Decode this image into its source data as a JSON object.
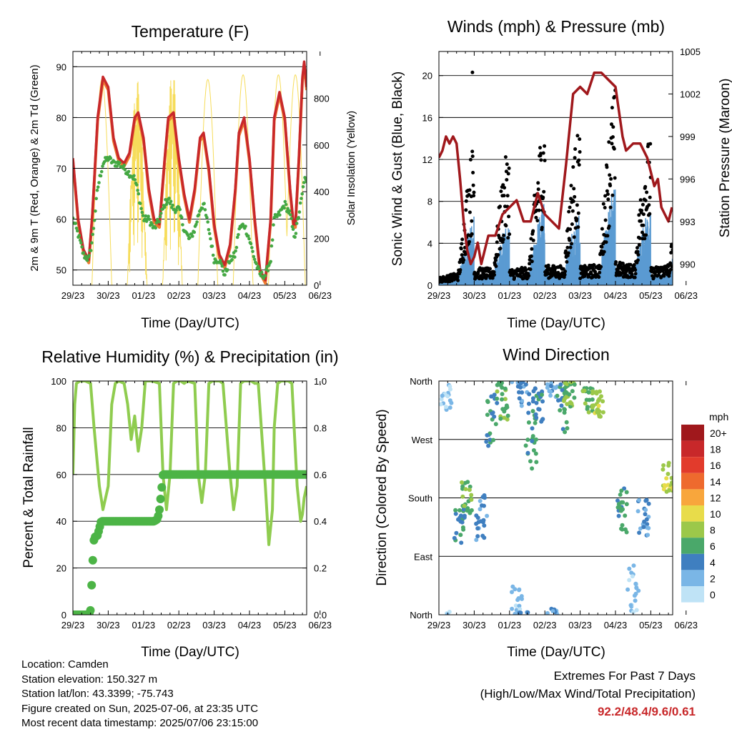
{
  "colors": {
    "temp_red": "#c8282a",
    "temp_orange": "#ee7a30",
    "dewpoint": "#44a843",
    "solar": "#f6dc5a",
    "wind": "#5b9bd2",
    "gust": "#000000",
    "pressure": "#a0181c",
    "rh": "#8fcc4f",
    "rain": "#4cb446"
  },
  "x_ticks": [
    "29/23",
    "30/23",
    "01/23",
    "02/23",
    "03/23",
    "04/23",
    "05/23",
    "06/23"
  ],
  "panels": {
    "temperature": {
      "title": "Temperature (F)",
      "xlabel": "Time (Day/UTC)",
      "ylabel_left": "2m & 9m T (Red, Orange) & 2m Td (Green)",
      "ylabel_right": "Solar Insolation (Yellow)"
    },
    "winds": {
      "title": "Winds (mph) & Pressure (mb)",
      "xlabel": "Time (Day/UTC)",
      "ylabel_left": "Sonic Wind & Gust (Blue, Black)",
      "ylabel_right": "Station Pressure (Maroon)"
    },
    "humidity": {
      "title": "Relative Humidity (%) & Precipitation (in)",
      "xlabel": "Time (Day/UTC)",
      "ylabel_left": "Percent & Total Rainfall"
    },
    "direction": {
      "title": "Wind Direction",
      "xlabel": "Time (Day/UTC)",
      "ylabel_left": "Direction (Colored By Speed)",
      "legend_title": "mph"
    }
  },
  "info": {
    "location": "Location: Camden",
    "elevation": "Station elevation: 150.327 m",
    "latlon": "Station lat/lon: 43.3399; -75.743",
    "created": "Figure created on Sun, 2025-07-06, at 23:35 UTC",
    "latest": "Most recent data timestamp: 2025/07/06 23:15:00"
  },
  "extremes": {
    "title": "Extremes For Past 7 Days",
    "subtitle": "(High/Low/Max Wind/Total Precipitation)",
    "values": "92.2/48.4/9.6/0.61"
  },
  "chart_data": [
    {
      "type": "line",
      "title": "Temperature (F)",
      "xlabel": "Time (Day/UTC)",
      "ylabel": "2m & 9m T (Red, Orange) & 2m Td (Green)",
      "y2label": "Solar Insolation (Yellow)",
      "x_ticks": [
        "29/23",
        "30/23",
        "01/23",
        "02/23",
        "03/23",
        "04/23",
        "05/23",
        "06/23"
      ],
      "ylim": [
        47,
        93
      ],
      "y2lim": [
        0,
        1000
      ],
      "yticks": [
        50,
        60,
        70,
        80,
        90
      ],
      "y2ticks": [
        0,
        200,
        400,
        600,
        800
      ],
      "x_days": [
        0,
        0.15,
        0.3,
        0.45,
        0.55,
        0.7,
        0.85,
        1,
        1.15,
        1.3,
        1.45,
        1.6,
        1.75,
        1.85,
        2,
        2.15,
        2.3,
        2.45,
        2.6,
        2.7,
        2.85,
        3,
        3.15,
        3.3,
        3.45,
        3.6,
        3.7,
        3.85,
        4,
        4.15,
        4.3,
        4.45,
        4.6,
        4.7,
        4.85,
        5,
        5.15,
        5.3,
        5.45,
        5.6,
        5.7,
        5.85,
        6,
        6.15,
        6.25,
        6.3,
        6.4,
        6.5,
        6.55,
        6.62
      ],
      "series": [
        {
          "name": "2m & 9m T",
          "values": [
            72,
            60,
            54,
            52,
            61,
            80,
            88,
            86,
            76,
            72,
            71,
            73,
            80,
            81,
            76,
            66,
            60,
            59,
            72,
            80,
            81,
            72,
            65,
            60,
            66,
            76,
            77,
            70,
            59,
            53,
            51,
            55,
            66,
            77,
            80,
            72,
            60,
            50,
            48,
            60,
            80,
            85,
            80,
            66,
            59,
            59,
            72,
            88,
            91,
            86
          ]
        },
        {
          "name": "2m Td",
          "values": [
            60,
            57,
            53,
            52,
            56,
            66,
            71,
            72,
            71,
            71,
            70,
            69,
            68,
            65,
            60,
            60,
            58,
            60,
            63,
            64,
            62,
            62,
            58,
            56,
            58,
            62,
            63,
            58,
            52,
            52,
            49,
            52,
            53,
            58,
            59,
            56,
            52,
            49,
            49,
            52,
            60,
            61,
            63,
            61,
            57,
            57,
            61,
            65,
            68,
            67
          ]
        },
        {
          "name": "Solar Insolation",
          "day_peaks": [
            880,
            880,
            920,
            880,
            900,
            900,
            900
          ],
          "peak_times": [
            0.82,
            1.82,
            2.82,
            3.82,
            4.82,
            5.82,
            6.3
          ]
        }
      ]
    },
    {
      "type": "scatter",
      "title": "Winds (mph) & Pressure (mb)",
      "xlabel": "Time (Day/UTC)",
      "ylabel": "Sonic Wind & Gust (Blue, Black)",
      "y2label": "Station Pressure (Maroon)",
      "x_ticks": [
        "29/23",
        "30/23",
        "01/23",
        "02/23",
        "03/23",
        "04/23",
        "05/23",
        "06/23"
      ],
      "ylim": [
        0,
        22.3
      ],
      "y2lim": [
        988.5,
        1005
      ],
      "yticks": [
        0,
        4,
        8,
        12,
        16,
        20
      ],
      "y2ticks": [
        990,
        993,
        996,
        999,
        1002,
        1005
      ],
      "wind_daily_peak": [
        3,
        7,
        6,
        8,
        7,
        9.5,
        7,
        8
      ],
      "gust_daily_peak": [
        6,
        14,
        13,
        16,
        15,
        19,
        14,
        18
      ],
      "pressure": {
        "x_days": [
          0,
          0.1,
          0.2,
          0.3,
          0.4,
          0.5,
          0.6,
          0.7,
          0.8,
          0.9,
          1,
          1.1,
          1.2,
          1.4,
          1.6,
          1.8,
          2,
          2.2,
          2.4,
          2.6,
          2.8,
          3,
          3.2,
          3.4,
          3.6,
          3.8,
          4,
          4.2,
          4.4,
          4.6,
          4.8,
          5,
          5.2,
          5.3,
          5.5,
          5.7,
          5.9,
          6,
          6.1,
          6.2,
          6.3,
          6.4,
          6.5,
          6.6
        ],
        "values": [
          997.5,
          998,
          999,
          998.5,
          999,
          998.5,
          996,
          993,
          991,
          990,
          990.5,
          991.5,
          990,
          992,
          992,
          993.5,
          994,
          994.5,
          993,
          993,
          995,
          993.5,
          993,
          992.5,
          997,
          1002,
          1002.5,
          1002,
          1003.5,
          1003.5,
          1003,
          1002.5,
          999,
          998,
          998.5,
          998.5,
          997.5,
          996.5,
          995.5,
          996,
          994,
          993.5,
          993,
          994
        ]
      }
    },
    {
      "type": "line",
      "title": "Relative Humidity (%) & Precipitation (in)",
      "xlabel": "Time (Day/UTC)",
      "ylabel": "Percent & Total Rainfall",
      "x_ticks": [
        "29/23",
        "30/23",
        "01/23",
        "02/23",
        "03/23",
        "04/23",
        "05/23",
        "06/23"
      ],
      "ylim": [
        0,
        100
      ],
      "y2lim": [
        0,
        1
      ],
      "yticks": [
        0,
        20,
        40,
        60,
        80,
        100
      ],
      "y2ticks": [
        0,
        0.2,
        0.4,
        0.6,
        0.8,
        1.0
      ],
      "series": [
        {
          "name": "Relative Humidity",
          "x_days": [
            0,
            0.05,
            0.1,
            0.2,
            0.35,
            0.5,
            0.6,
            0.75,
            0.85,
            1,
            1.1,
            1.2,
            1.3,
            1.45,
            1.55,
            1.65,
            1.75,
            1.85,
            1.95,
            2.05,
            2.15,
            2.25,
            2.45,
            2.55,
            2.65,
            2.75,
            2.85,
            2.95,
            3.05,
            3.15,
            3.25,
            3.45,
            3.55,
            3.65,
            3.75,
            3.85,
            3.95,
            4.05,
            4.15,
            4.25,
            4.45,
            4.55,
            4.65,
            4.75,
            4.85,
            4.95,
            5.05,
            5.15,
            5.25,
            5.45,
            5.55,
            5.65,
            5.7,
            5.8,
            5.9,
            6.0,
            6.1,
            6.2,
            6.35,
            6.45,
            6.5,
            6.55,
            6.62
          ],
          "values": [
            60,
            90,
            99,
            100,
            100,
            99,
            80,
            55,
            45,
            55,
            90,
            99,
            100,
            99,
            90,
            75,
            85,
            70,
            80,
            100,
            100,
            100,
            99,
            60,
            45,
            60,
            99,
            100,
            100,
            99,
            100,
            99,
            60,
            48,
            60,
            99,
            100,
            100,
            100,
            99,
            60,
            45,
            55,
            99,
            100,
            100,
            100,
            99,
            99,
            55,
            30,
            45,
            80,
            99,
            100,
            100,
            100,
            99,
            55,
            40,
            43,
            50,
            55
          ]
        },
        {
          "name": "Total Rainfall",
          "x_days": [
            0,
            0.3,
            0.45,
            0.5,
            0.55,
            0.6,
            0.7,
            0.8,
            1.0,
            1.5,
            1.8,
            2.1,
            2.3,
            2.4,
            2.45,
            2.5,
            2.55,
            2.6,
            3.0,
            4.0,
            5.0,
            6.0,
            6.62
          ],
          "values": [
            0,
            0,
            0,
            0.02,
            0.2,
            0.33,
            0.34,
            0.4,
            0.4,
            0.4,
            0.4,
            0.4,
            0.4,
            0.41,
            0.45,
            0.52,
            0.6,
            0.6,
            0.6,
            0.6,
            0.6,
            0.6,
            0.6
          ]
        }
      ]
    },
    {
      "type": "scatter",
      "title": "Wind Direction",
      "xlabel": "Time (Day/UTC)",
      "ylabel": "Direction (Colored By Speed)",
      "x_ticks": [
        "29/23",
        "30/23",
        "01/23",
        "02/23",
        "03/23",
        "04/23",
        "05/23",
        "06/23"
      ],
      "y_tick_labels": [
        "North",
        "East",
        "South",
        "West",
        "North"
      ],
      "ylim": [
        0,
        360
      ],
      "legend": {
        "title": "mph",
        "labels": [
          "20+",
          "18",
          "16",
          "14",
          "12",
          "10",
          "8",
          "6",
          "4",
          "2",
          "0"
        ],
        "colors": [
          "#a0181c",
          "#c8282a",
          "#e23b2c",
          "#ee6a2e",
          "#f8a63c",
          "#e8dc4a",
          "#9cc84a",
          "#4aa86a",
          "#3f7fc0",
          "#7ab6e6",
          "#bfe3f6"
        ]
      },
      "clusters": [
        {
          "x": 0.2,
          "dir": 340,
          "spread": 25,
          "spd": 1
        },
        {
          "x": 0.6,
          "dir": 140,
          "spread": 30,
          "spd": 4
        },
        {
          "x": 0.8,
          "dir": 180,
          "spread": 25,
          "spd": 6
        },
        {
          "x": 1.2,
          "dir": 150,
          "spread": 35,
          "spd": 3
        },
        {
          "x": 1.5,
          "dir": 300,
          "spread": 40,
          "spd": 4
        },
        {
          "x": 1.8,
          "dir": 330,
          "spread": 30,
          "spd": 6
        },
        {
          "x": 2.2,
          "dir": 20,
          "spread": 25,
          "spd": 1
        },
        {
          "x": 2.4,
          "dir": 340,
          "spread": 25,
          "spd": 3
        },
        {
          "x": 2.6,
          "dir": 270,
          "spread": 45,
          "spd": 5
        },
        {
          "x": 2.8,
          "dir": 320,
          "spread": 30,
          "spd": 4
        },
        {
          "x": 3.2,
          "dir": 350,
          "spread": 20,
          "spd": 2
        },
        {
          "x": 3.5,
          "dir": 320,
          "spread": 40,
          "spd": 5
        },
        {
          "x": 3.7,
          "dir": 340,
          "spread": 20,
          "spd": 7
        },
        {
          "x": 4.2,
          "dir": 330,
          "spread": 20,
          "spd": 6
        },
        {
          "x": 4.5,
          "dir": 325,
          "spread": 20,
          "spd": 8
        },
        {
          "x": 5.2,
          "dir": 160,
          "spread": 35,
          "spd": 5
        },
        {
          "x": 5.5,
          "dir": 40,
          "spread": 40,
          "spd": 1
        },
        {
          "x": 5.8,
          "dir": 150,
          "spread": 30,
          "spd": 3
        },
        {
          "x": 6.5,
          "dir": 210,
          "spread": 25,
          "spd": 8
        }
      ]
    }
  ]
}
